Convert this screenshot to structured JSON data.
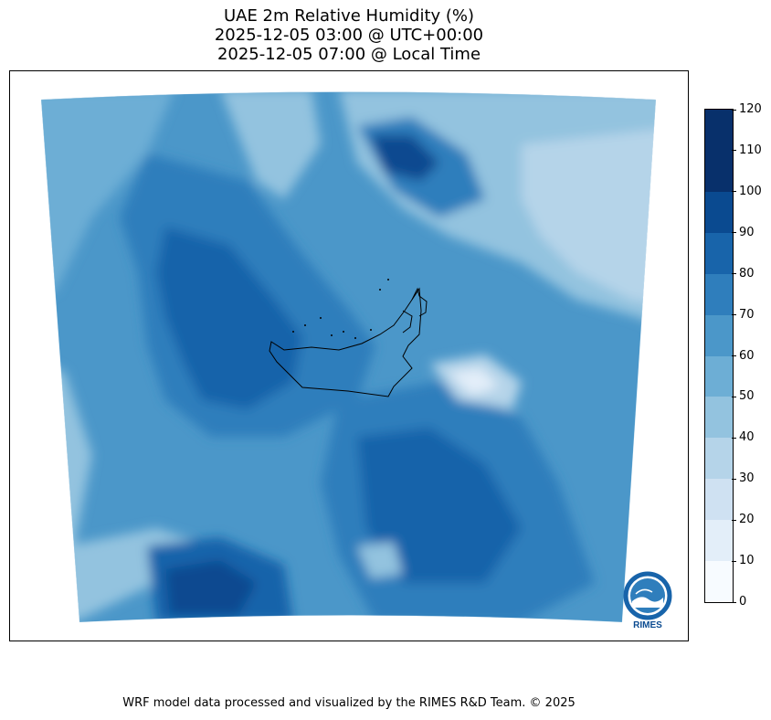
{
  "title": {
    "line1": "UAE 2m Relative Humidity (%)",
    "line2": "2025-12-05 03:00 @ UTC+00:00",
    "line3": "2025-12-05 07:00 @ Local Time"
  },
  "colorbar": {
    "ticks": [
      "0",
      "10",
      "20",
      "30",
      "40",
      "50",
      "60",
      "70",
      "80",
      "90",
      "100",
      "110",
      "120"
    ],
    "colors": [
      "#f7fbff",
      "#e3eef9",
      "#cfe1f2",
      "#b5d4e9",
      "#93c3df",
      "#6daed5",
      "#4b97c9",
      "#2f7ebc",
      "#1864aa",
      "#0a4a90",
      "#08306b",
      "#08306b"
    ]
  },
  "map": {
    "variable": "2m Relative Humidity",
    "units": "%",
    "region": "UAE",
    "colormap": "Blues"
  },
  "logo": {
    "text": "RIMES",
    "ring_text": "Regional Integrated Multi-Hazard Early Warning System"
  },
  "footer": "WRF model data processed and visualized by the RIMES R&D Team. © 2025"
}
